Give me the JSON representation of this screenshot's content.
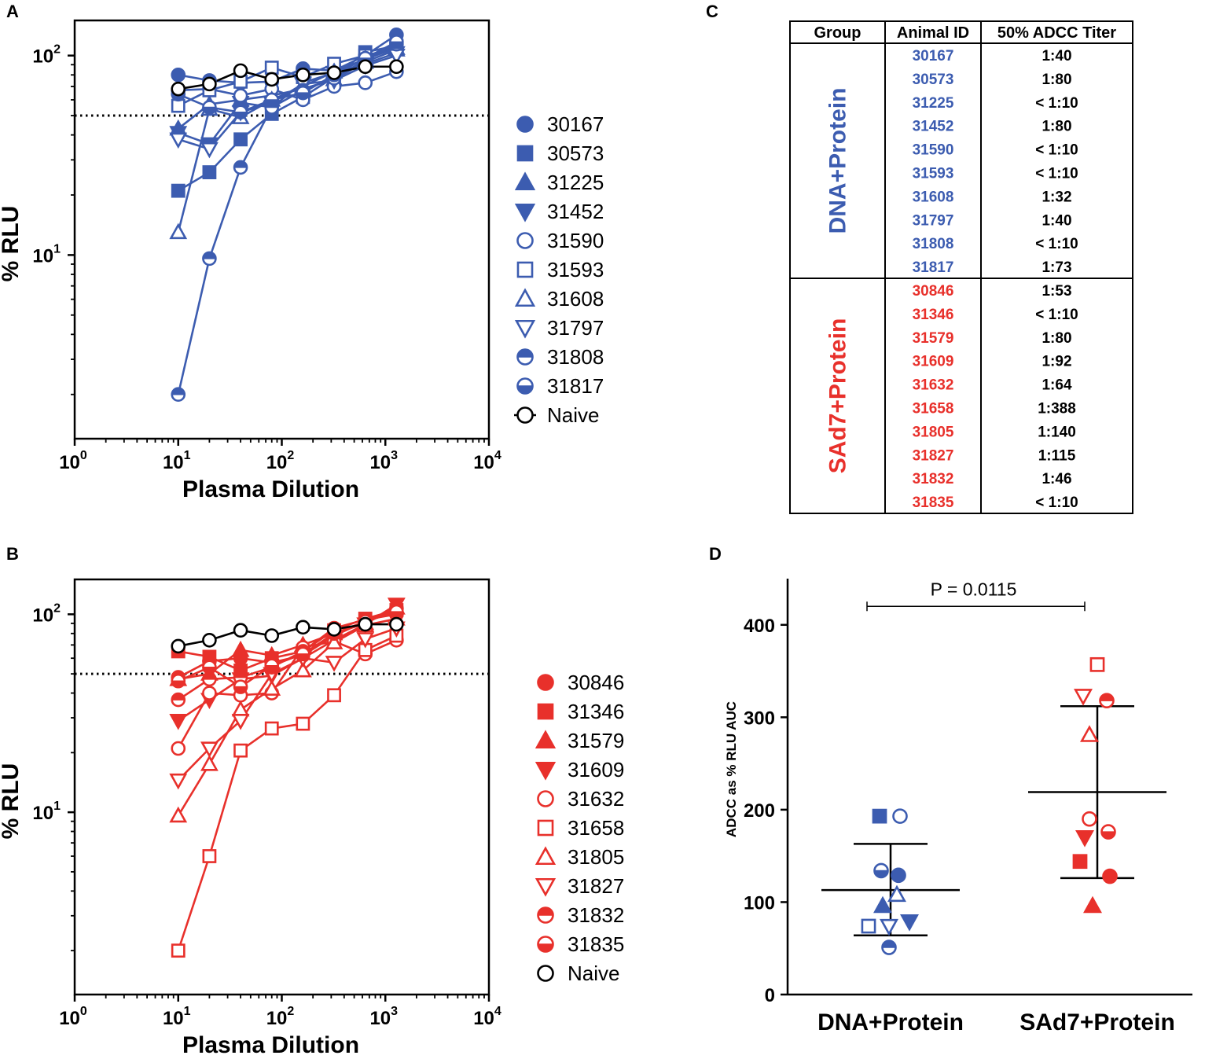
{
  "colors": {
    "blue": "#3c5cb0",
    "red": "#e8302b",
    "black": "#000000"
  },
  "panels": {
    "a": "A",
    "b": "B",
    "c": "C",
    "d": "D"
  },
  "panel_a": {
    "xlabel": "Plasma Dilution",
    "ylabel": "% RLU",
    "x_ticks": [
      {
        "base": "10",
        "exp": "0"
      },
      {
        "base": "10",
        "exp": "1"
      },
      {
        "base": "10",
        "exp": "2"
      },
      {
        "base": "10",
        "exp": "3"
      },
      {
        "base": "10",
        "exp": "4"
      }
    ],
    "y_ticks": [
      {
        "base": "10",
        "exp": "1"
      },
      {
        "base": "10",
        "exp": "2"
      }
    ],
    "legend": [
      {
        "label": "30167",
        "symbol": "circle-filled"
      },
      {
        "label": "30573",
        "symbol": "square-filled"
      },
      {
        "label": "31225",
        "symbol": "triangle-filled"
      },
      {
        "label": "31452",
        "symbol": "triangle-down-filled"
      },
      {
        "label": "31590",
        "symbol": "circle-open"
      },
      {
        "label": "31593",
        "symbol": "square-open"
      },
      {
        "label": "31608",
        "symbol": "triangle-open"
      },
      {
        "label": "31797",
        "symbol": "triangle-down-open"
      },
      {
        "label": "31808",
        "symbol": "circle-half-top"
      },
      {
        "label": "31817",
        "symbol": "circle-half-bottom"
      },
      {
        "label": "Naive",
        "symbol": "circle-open-line"
      }
    ]
  },
  "panel_b": {
    "xlabel": "Plasma Dilution",
    "ylabel": "% RLU",
    "x_ticks": [
      {
        "base": "10",
        "exp": "0"
      },
      {
        "base": "10",
        "exp": "1"
      },
      {
        "base": "10",
        "exp": "2"
      },
      {
        "base": "10",
        "exp": "3"
      },
      {
        "base": "10",
        "exp": "4"
      }
    ],
    "y_ticks": [
      {
        "base": "10",
        "exp": "1"
      },
      {
        "base": "10",
        "exp": "2"
      }
    ],
    "legend": [
      {
        "label": "30846",
        "symbol": "circle-filled"
      },
      {
        "label": "31346",
        "symbol": "square-filled"
      },
      {
        "label": "31579",
        "symbol": "triangle-filled"
      },
      {
        "label": "31609",
        "symbol": "triangle-down-filled"
      },
      {
        "label": "31632",
        "symbol": "circle-open"
      },
      {
        "label": "31658",
        "symbol": "square-open"
      },
      {
        "label": "31805",
        "symbol": "triangle-open"
      },
      {
        "label": "31827",
        "symbol": "triangle-down-open"
      },
      {
        "label": "31832",
        "symbol": "circle-half-top"
      },
      {
        "label": "31835",
        "symbol": "circle-half-bottom"
      },
      {
        "label": "Naive",
        "symbol": "circle-open"
      }
    ]
  },
  "panel_c": {
    "headers": [
      "Group",
      "Animal ID",
      "50% ADCC Titer"
    ],
    "groups": [
      {
        "name": "DNA+Protein",
        "rows": [
          {
            "id": "30167",
            "titer": "1:40"
          },
          {
            "id": "30573",
            "titer": "1:80"
          },
          {
            "id": "31225",
            "titer": "< 1:10"
          },
          {
            "id": "31452",
            "titer": "1:80"
          },
          {
            "id": "31590",
            "titer": "< 1:10"
          },
          {
            "id": "31593",
            "titer": "< 1:10"
          },
          {
            "id": "31608",
            "titer": "1:32"
          },
          {
            "id": "31797",
            "titer": "1:40"
          },
          {
            "id": "31808",
            "titer": "< 1:10"
          },
          {
            "id": "31817",
            "titer": "1:73"
          }
        ]
      },
      {
        "name": "SAd7+Protein",
        "rows": [
          {
            "id": "30846",
            "titer": "1:53"
          },
          {
            "id": "31346",
            "titer": "< 1:10"
          },
          {
            "id": "31579",
            "titer": "1:80"
          },
          {
            "id": "31609",
            "titer": "1:92"
          },
          {
            "id": "31632",
            "titer": "1:64"
          },
          {
            "id": "31658",
            "titer": "1:388"
          },
          {
            "id": "31805",
            "titer": "1:140"
          },
          {
            "id": "31827",
            "titer": "1:115"
          },
          {
            "id": "31832",
            "titer": "1:46"
          },
          {
            "id": "31835",
            "titer": "< 1:10"
          }
        ]
      }
    ]
  },
  "panel_d": {
    "ylabel": "ADCC as % RLU AUC",
    "y_ticks": [
      "0",
      "100",
      "200",
      "300",
      "400"
    ],
    "categories": [
      "DNA+Protein",
      "SAd7+Protein"
    ],
    "pvalue_label": "P = 0.0115"
  },
  "chart_data": [
    {
      "panel": "A",
      "type": "line",
      "title": "",
      "xlabel": "Plasma Dilution",
      "ylabel": "% RLU",
      "xscale": "log",
      "yscale": "log",
      "xlim": [
        1,
        10000
      ],
      "ylim": [
        1.2,
        150
      ],
      "reference_line": {
        "y": 50,
        "style": "dotted"
      },
      "x": [
        10,
        20,
        40,
        80,
        160,
        320,
        640,
        1280
      ],
      "series": [
        {
          "name": "30167",
          "symbol": "circle-filled",
          "color": "blue",
          "values": [
            80,
            75,
            73,
            74,
            86,
            84,
            100,
            127
          ]
        },
        {
          "name": "30573",
          "symbol": "square-filled",
          "color": "blue",
          "values": [
            21,
            26,
            38,
            51,
            62,
            78,
            104,
            112
          ]
        },
        {
          "name": "31225",
          "symbol": "triangle-filled",
          "color": "blue",
          "values": [
            43,
            57,
            60,
            63,
            68,
            76,
            93,
            107
          ]
        },
        {
          "name": "31452",
          "symbol": "triangle-down-filled",
          "color": "blue",
          "values": [
            41,
            36,
            58,
            55,
            73,
            82,
            91,
            103
          ]
        },
        {
          "name": "31590",
          "symbol": "circle-open",
          "color": "blue",
          "values": [
            67,
            68,
            63,
            68,
            60,
            70,
            73,
            83
          ]
        },
        {
          "name": "31593",
          "symbol": "square-open",
          "color": "blue",
          "values": [
            56,
            67,
            74,
            87,
            78,
            91,
            100,
            109
          ]
        },
        {
          "name": "31608",
          "symbol": "triangle-open",
          "color": "blue",
          "values": [
            13,
            54,
            49,
            60,
            70,
            83,
            96,
            109
          ]
        },
        {
          "name": "31797",
          "symbol": "triangle-down-open",
          "color": "blue",
          "values": [
            38,
            34,
            52,
            58,
            72,
            75,
            89,
            100
          ]
        },
        {
          "name": "31808",
          "symbol": "circle-half-top",
          "color": "blue",
          "values": [
            2.0,
            9.6,
            27.5,
            55,
            67,
            77,
            95,
            114
          ]
        },
        {
          "name": "31817",
          "symbol": "circle-half-bottom",
          "color": "blue",
          "values": [
            64,
            55,
            52,
            60,
            65,
            80,
            97,
            117
          ]
        },
        {
          "name": "Naive",
          "symbol": "circle-open",
          "color": "black",
          "values": [
            68,
            72,
            84,
            76,
            80,
            82,
            88,
            88
          ]
        }
      ]
    },
    {
      "panel": "B",
      "type": "line",
      "title": "",
      "xlabel": "Plasma Dilution",
      "ylabel": "% RLU",
      "xscale": "log",
      "yscale": "log",
      "xlim": [
        1,
        10000
      ],
      "ylim": [
        1.2,
        150
      ],
      "reference_line": {
        "y": 50,
        "style": "dotted"
      },
      "x": [
        10,
        20,
        40,
        80,
        160,
        320,
        640,
        1280
      ],
      "series": [
        {
          "name": "30846",
          "symbol": "circle-filled",
          "color": "red",
          "values": [
            48,
            58,
            60,
            57,
            62,
            78,
            92,
            107
          ]
        },
        {
          "name": "31346",
          "symbol": "square-filled",
          "color": "red",
          "values": [
            65,
            61,
            52,
            60,
            65,
            83,
            95,
            105
          ]
        },
        {
          "name": "31579",
          "symbol": "triangle-filled",
          "color": "red",
          "values": [
            47,
            50,
            66,
            62,
            70,
            80,
            90,
            108
          ]
        },
        {
          "name": "31609",
          "symbol": "triangle-down-filled",
          "color": "red",
          "values": [
            29,
            37,
            47,
            49,
            60,
            74,
            89,
            112
          ]
        },
        {
          "name": "31632",
          "symbol": "circle-open",
          "color": "red",
          "values": [
            21,
            40,
            39,
            40,
            68,
            73,
            63,
            74
          ]
        },
        {
          "name": "31658",
          "symbol": "square-open",
          "color": "red",
          "values": [
            2.0,
            6.0,
            20.5,
            26.5,
            28,
            39,
            66,
            78
          ]
        },
        {
          "name": "31805",
          "symbol": "triangle-open",
          "color": "red",
          "values": [
            9.6,
            17.5,
            33,
            42,
            52,
            72,
            88,
            95
          ]
        },
        {
          "name": "31827",
          "symbol": "triangle-down-open",
          "color": "red",
          "values": [
            14.5,
            21,
            29,
            50,
            60,
            57,
            75,
            85
          ]
        },
        {
          "name": "31832",
          "symbol": "circle-half-top",
          "color": "red",
          "values": [
            37,
            47,
            48,
            54,
            65,
            85,
            94,
            100
          ]
        },
        {
          "name": "31835",
          "symbol": "circle-half-bottom",
          "color": "red",
          "values": [
            46,
            54,
            43,
            55,
            63,
            80,
            92,
            103
          ]
        },
        {
          "name": "Naive",
          "symbol": "circle-open",
          "color": "black",
          "values": [
            69,
            74,
            83,
            78,
            86,
            84,
            89,
            89
          ]
        }
      ]
    },
    {
      "panel": "D",
      "type": "scatter",
      "title": "",
      "xlabel": "",
      "ylabel": "ADCC as % RLU AUC",
      "ylim": [
        0,
        450
      ],
      "categories": [
        "DNA+Protein",
        "SAd7+Protein"
      ],
      "groups": [
        {
          "name": "DNA+Protein",
          "color": "blue",
          "mean": 113,
          "sd_upper": 163,
          "sd_lower": 64,
          "points": [
            {
              "id": "30573",
              "symbol": "square-filled",
              "value": 193
            },
            {
              "id": "31590",
              "symbol": "circle-open",
              "value": 193
            },
            {
              "id": "31817",
              "symbol": "circle-half-bottom",
              "value": 134
            },
            {
              "id": "30167",
              "symbol": "circle-filled",
              "value": 129
            },
            {
              "id": "31608",
              "symbol": "triangle-open",
              "value": 108
            },
            {
              "id": "31225",
              "symbol": "triangle-filled",
              "value": 96
            },
            {
              "id": "31452",
              "symbol": "triangle-down-filled",
              "value": 79
            },
            {
              "id": "31593",
              "symbol": "square-open",
              "value": 74
            },
            {
              "id": "31797",
              "symbol": "triangle-down-open",
              "value": 74
            },
            {
              "id": "31808",
              "symbol": "circle-half-top",
              "value": 51
            }
          ]
        },
        {
          "name": "SAd7+Protein",
          "color": "red",
          "mean": 219,
          "sd_upper": 312,
          "sd_lower": 126,
          "points": [
            {
              "id": "31658",
              "symbol": "square-open",
              "value": 357
            },
            {
              "id": "31827",
              "symbol": "triangle-down-open",
              "value": 323
            },
            {
              "id": "31832",
              "symbol": "circle-half-top",
              "value": 318
            },
            {
              "id": "31805",
              "symbol": "triangle-open",
              "value": 281
            },
            {
              "id": "31632",
              "symbol": "circle-open",
              "value": 190
            },
            {
              "id": "31835",
              "symbol": "circle-half-bottom",
              "value": 176
            },
            {
              "id": "31609",
              "symbol": "triangle-down-filled",
              "value": 170
            },
            {
              "id": "31346",
              "symbol": "square-filled",
              "value": 144
            },
            {
              "id": "30846",
              "symbol": "circle-filled",
              "value": 128
            },
            {
              "id": "31579",
              "symbol": "triangle-filled",
              "value": 96
            }
          ]
        }
      ],
      "comparison": {
        "label": "P = 0.0115",
        "y": 420
      }
    }
  ]
}
